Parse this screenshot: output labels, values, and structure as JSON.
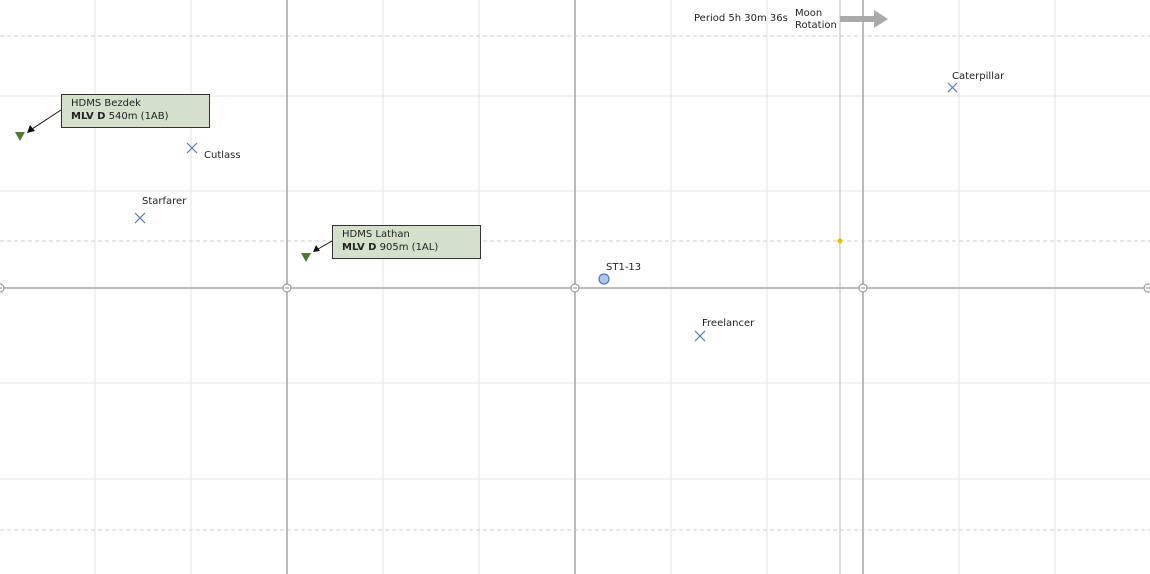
{
  "moon_rotation": {
    "period_text": "Period 5h 30m 36s",
    "title_line1": "Moon",
    "title_line2": "Rotation",
    "arrow_icon": "right-arrow-icon",
    "arrow_color": "#aaaaaa"
  },
  "outposts": [
    {
      "id": "bezdek",
      "name": "HDMS Bezdek",
      "type": "MLV D",
      "elevation": "540m (1AB)",
      "marker_color": "#4f7a33"
    },
    {
      "id": "lathan",
      "name": "HDMS Lathan",
      "type": "MLV D",
      "elevation": "905m (1AL)",
      "marker_color": "#4f7a33"
    }
  ],
  "landmarks": [
    {
      "id": "caterpillar",
      "name": "Caterpillar"
    },
    {
      "id": "cutlass",
      "name": "Cutlass"
    },
    {
      "id": "starfarer",
      "name": "Starfarer"
    },
    {
      "id": "freelancer",
      "name": "Freelancer"
    }
  ],
  "station": {
    "name": "ST1-13"
  },
  "colors": {
    "cross_marker": "#5577bb",
    "callout_bg": "#d4e0cc",
    "grid_line": "#dddddd",
    "axis_line": "#bbbbbb",
    "sun_marker": "#e6c200"
  }
}
